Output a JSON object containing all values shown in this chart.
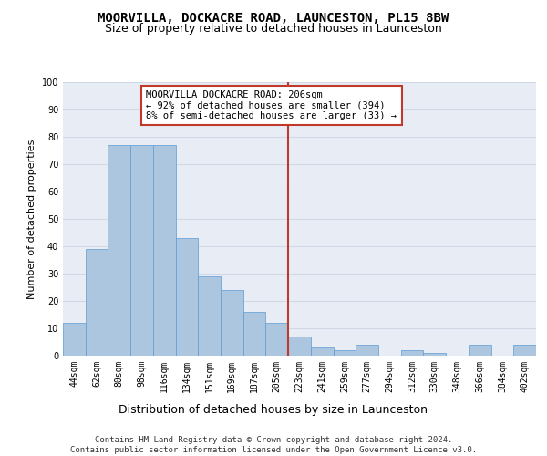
{
  "title": "MOORVILLA, DOCKACRE ROAD, LAUNCESTON, PL15 8BW",
  "subtitle": "Size of property relative to detached houses in Launceston",
  "xlabel": "Distribution of detached houses by size in Launceston",
  "ylabel": "Number of detached properties",
  "categories": [
    "44sqm",
    "62sqm",
    "80sqm",
    "98sqm",
    "116sqm",
    "134sqm",
    "151sqm",
    "169sqm",
    "187sqm",
    "205sqm",
    "223sqm",
    "241sqm",
    "259sqm",
    "277sqm",
    "294sqm",
    "312sqm",
    "330sqm",
    "348sqm",
    "366sqm",
    "384sqm",
    "402sqm"
  ],
  "values": [
    12,
    39,
    77,
    77,
    77,
    43,
    29,
    24,
    16,
    12,
    7,
    3,
    2,
    4,
    0,
    2,
    1,
    0,
    4,
    0,
    4
  ],
  "bar_color": "#adc6e0",
  "bar_edge_color": "#5b9bd5",
  "vline_x": 9.5,
  "vline_color": "#c0392b",
  "annotation_text": "MOORVILLA DOCKACRE ROAD: 206sqm\n← 92% of detached houses are smaller (394)\n8% of semi-detached houses are larger (33) →",
  "annotation_box_color": "#c0392b",
  "ylim": [
    0,
    100
  ],
  "yticks": [
    0,
    10,
    20,
    30,
    40,
    50,
    60,
    70,
    80,
    90,
    100
  ],
  "grid_color": "#d0d8e8",
  "bg_color": "#e8edf5",
  "footer": "Contains HM Land Registry data © Crown copyright and database right 2024.\nContains public sector information licensed under the Open Government Licence v3.0.",
  "title_fontsize": 10,
  "subtitle_fontsize": 9,
  "xlabel_fontsize": 9,
  "ylabel_fontsize": 8,
  "tick_fontsize": 7,
  "annotation_fontsize": 7.5,
  "footer_fontsize": 6.5
}
